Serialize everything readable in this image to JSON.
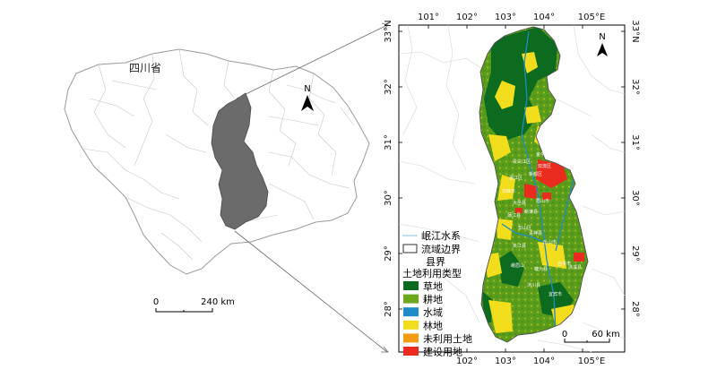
{
  "overview_map": {
    "province_label": "四川省",
    "north_label": "N",
    "scale_start": "0",
    "scale_end": "240 km"
  },
  "detail_map": {
    "top_ticks": [
      "101°",
      "102°",
      "103°",
      "104°",
      "105°E"
    ],
    "bottom_ticks": [
      "102°",
      "103°",
      "104°",
      "105°E"
    ],
    "left_ticks": [
      "33°N",
      "32°",
      "31°",
      "30°",
      "29°",
      "28°"
    ],
    "right_ticks": [
      "33°N",
      "32°",
      "31°",
      "30°",
      "29°",
      "28°"
    ],
    "north_label": "N",
    "scale_start": "0",
    "scale_end": "60 km",
    "town_labels": [
      "金牛区",
      "双流区",
      "青白江区",
      "温江区",
      "新都区",
      "邛崃市",
      "大邑县",
      "蒲江县",
      "新津县",
      "眉山市",
      "彭山区",
      "青神县",
      "乐山市",
      "夹江县",
      "峨眉山",
      "犍为县",
      "沐川县",
      "宜宾市",
      "自贡市",
      "沐溪县"
    ]
  },
  "legend": {
    "items": [
      {
        "label": "岷江水系",
        "kind": "line",
        "color": "#9ec9e6"
      },
      {
        "label": "流域边界",
        "kind": "box",
        "color": "#ffffff"
      },
      {
        "label": "县界",
        "kind": "none",
        "color": ""
      }
    ],
    "landuse_title": "土地利用类型",
    "landuse": [
      {
        "label": "草地",
        "color": "#0c6b1f"
      },
      {
        "label": "耕地",
        "color": "#6ca81b"
      },
      {
        "label": "水域",
        "color": "#1e8cc8"
      },
      {
        "label": "林地",
        "color": "#f2dd1c"
      },
      {
        "label": "未利用土地",
        "color": "#f39c12"
      },
      {
        "label": "建设用地",
        "color": "#ec2b1f"
      }
    ]
  }
}
